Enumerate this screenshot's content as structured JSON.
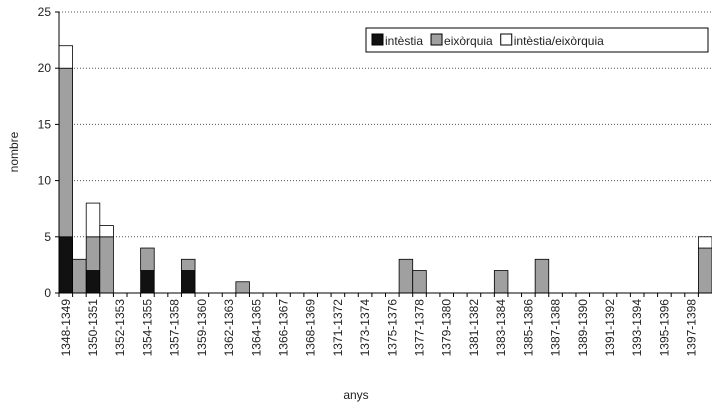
{
  "chart_data": {
    "type": "stacked_bar",
    "x_label": "anys",
    "y_label": "nombre",
    "categories": [
      "1348-1349",
      null,
      "1350-1351",
      null,
      "1352-1353",
      null,
      "1354-1355",
      null,
      "1357-1358",
      null,
      "1359-1360",
      null,
      "1362-1363",
      null,
      "1364-1365",
      null,
      "1366-1367",
      null,
      "1368-1369",
      null,
      "1371-1372",
      null,
      "1373-1374",
      null,
      "1375-1376",
      null,
      "1377-1378",
      null,
      "1379-1380",
      null,
      "1381-1382",
      null,
      "1383-1384",
      null,
      "1385-1386",
      null,
      "1387-1388",
      null,
      "1389-1390",
      null,
      "1391-1392",
      null,
      "1393-1394",
      null,
      "1395-1396",
      null,
      "1397-1398",
      null
    ],
    "series": [
      {
        "name": "intèstia",
        "color": "#111111",
        "values": [
          5,
          0,
          2,
          0,
          0,
          0,
          2,
          0,
          0,
          2,
          0,
          0,
          0,
          0,
          0,
          0,
          0,
          0,
          0,
          0,
          0,
          0,
          0,
          0,
          0,
          0,
          0,
          0,
          0,
          0,
          0,
          0,
          0,
          0,
          0,
          0,
          0,
          0,
          0,
          0,
          0,
          0,
          0,
          0,
          0,
          0,
          0,
          0
        ]
      },
      {
        "name": "eixòrquia",
        "color": "#a0a0a0",
        "values": [
          15,
          3,
          3,
          5,
          0,
          0,
          2,
          0,
          0,
          1,
          0,
          0,
          0,
          1,
          0,
          0,
          0,
          0,
          0,
          0,
          0,
          0,
          0,
          0,
          0,
          3,
          2,
          0,
          0,
          0,
          0,
          0,
          2,
          0,
          0,
          3,
          0,
          0,
          0,
          0,
          0,
          0,
          0,
          0,
          0,
          0,
          0,
          4
        ]
      },
      {
        "name": "intèstia/eixòrquia",
        "color": "#ffffff",
        "values": [
          2,
          0,
          3,
          1,
          0,
          0,
          0,
          0,
          0,
          0,
          0,
          0,
          0,
          0,
          0,
          0,
          0,
          0,
          0,
          0,
          0,
          0,
          0,
          0,
          0,
          0,
          0,
          0,
          0,
          0,
          0,
          0,
          0,
          0,
          0,
          0,
          0,
          0,
          0,
          0,
          0,
          0,
          0,
          0,
          0,
          0,
          0,
          1
        ]
      }
    ],
    "ylim": [
      0,
      25
    ],
    "yticks": [
      0,
      5,
      10,
      15,
      20,
      25
    ],
    "grid": true,
    "legend": "top-right"
  }
}
